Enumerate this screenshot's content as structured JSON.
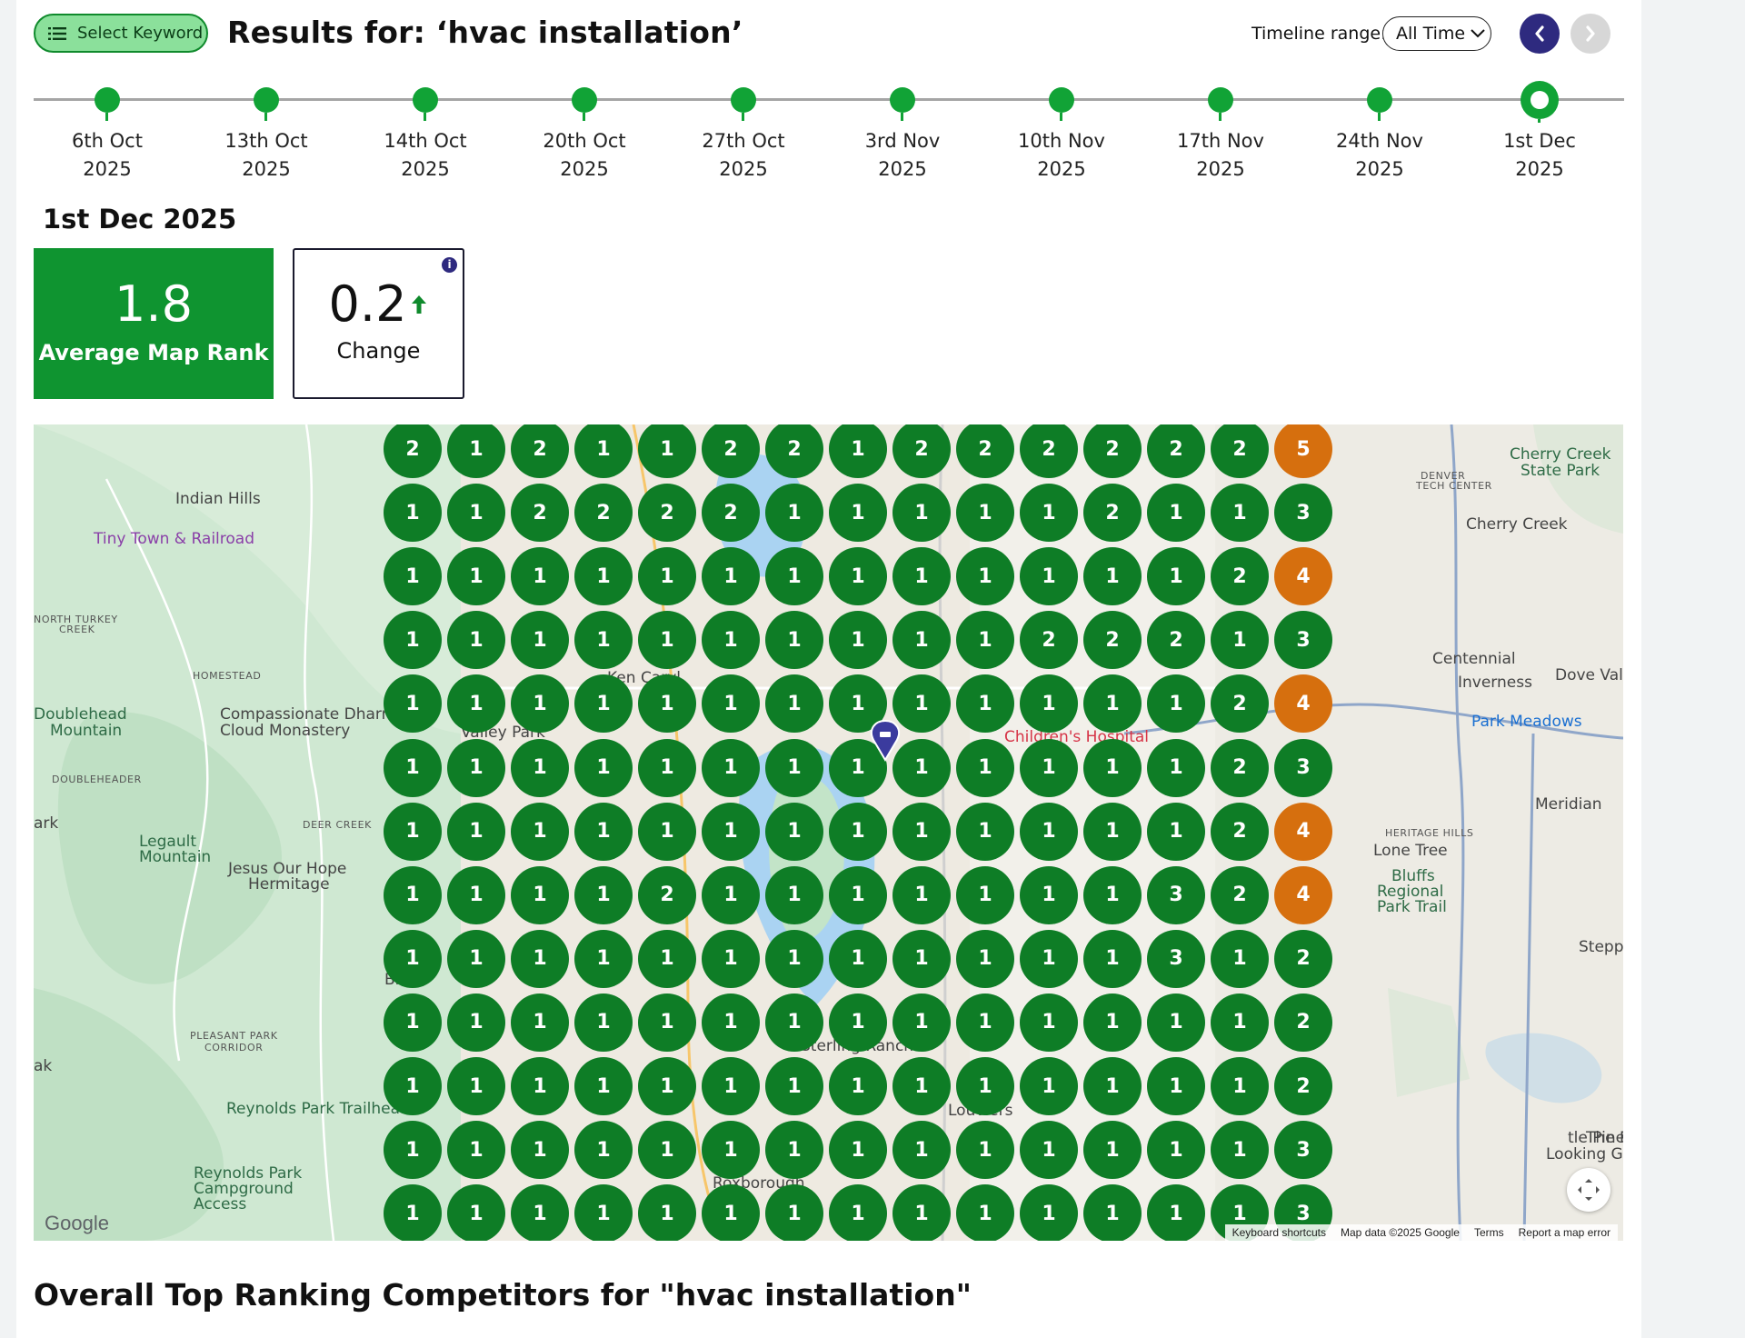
{
  "header": {
    "select_keyword_label": "Select Keyword",
    "results_title": "Results for: ‘hvac installation’",
    "timeline_range_label": "Timeline range:",
    "timeline_range_value": "All Time"
  },
  "timeline": {
    "dates": [
      {
        "line1": "6th Oct",
        "line2": "2025"
      },
      {
        "line1": "13th Oct",
        "line2": "2025"
      },
      {
        "line1": "14th Oct",
        "line2": "2025"
      },
      {
        "line1": "20th Oct",
        "line2": "2025"
      },
      {
        "line1": "27th Oct",
        "line2": "2025"
      },
      {
        "line1": "3rd Nov",
        "line2": "2025"
      },
      {
        "line1": "10th Nov",
        "line2": "2025"
      },
      {
        "line1": "17th Nov",
        "line2": "2025"
      },
      {
        "line1": "24th Nov",
        "line2": "2025"
      },
      {
        "line1": "1st Dec",
        "line2": "2025"
      }
    ],
    "selected_index": 9
  },
  "summary": {
    "date_heading": "1st Dec 2025",
    "average_rank_value": "1.8",
    "average_rank_label": "Average Map Rank",
    "change_value": "0.2",
    "change_label": "Change",
    "change_direction": "up",
    "info_icon": "i"
  },
  "map": {
    "labels": [
      {
        "text": "Indian Hills",
        "cls": ""
      },
      {
        "text": "Tiny Town & Railroad",
        "cls": "poi"
      },
      {
        "text": "NORTH TURKEY",
        "cls": "small"
      },
      {
        "text": "CREEK",
        "cls": "small"
      },
      {
        "text": "HOMESTEAD",
        "cls": "small"
      },
      {
        "text": "Doublehead",
        "cls": "green"
      },
      {
        "text": "Mountain",
        "cls": "green"
      },
      {
        "text": "Compassionate Dharma",
        "cls": ""
      },
      {
        "text": "Cloud Monastery",
        "cls": ""
      },
      {
        "text": "DOUBLEHEADER",
        "cls": "small"
      },
      {
        "text": "DEER CREEK",
        "cls": "small"
      },
      {
        "text": "Legault",
        "cls": "green"
      },
      {
        "text": "Mountain",
        "cls": "green"
      },
      {
        "text": "Jesus Our Hope",
        "cls": ""
      },
      {
        "text": "Hermitage",
        "cls": ""
      },
      {
        "text": "Brazil",
        "cls": ""
      },
      {
        "text": "PLEASANT PARK",
        "cls": "small"
      },
      {
        "text": "CORRIDOR",
        "cls": "small"
      },
      {
        "text": "Reynolds Park Trailhead",
        "cls": "green"
      },
      {
        "text": "Reynolds Park",
        "cls": "green"
      },
      {
        "text": "Campground",
        "cls": "green"
      },
      {
        "text": "Access",
        "cls": "green"
      },
      {
        "text": "Cherry Creek",
        "cls": "green"
      },
      {
        "text": "State Park",
        "cls": "green"
      },
      {
        "text": "Cherry Creek",
        "cls": ""
      },
      {
        "text": "Centennial",
        "cls": ""
      },
      {
        "text": "Inverness",
        "cls": ""
      },
      {
        "text": "Dove Vall",
        "cls": ""
      },
      {
        "text": "Park Meadows",
        "cls": "park"
      },
      {
        "text": "Meridian",
        "cls": ""
      },
      {
        "text": "HERITAGE HILLS",
        "cls": "small"
      },
      {
        "text": "Lone Tree",
        "cls": ""
      },
      {
        "text": "Bluffs",
        "cls": "green"
      },
      {
        "text": "Regional",
        "cls": "green"
      },
      {
        "text": "Park Trail",
        "cls": "green"
      },
      {
        "text": "Stepp",
        "cls": ""
      },
      {
        "text": "tle Pines",
        "cls": ""
      },
      {
        "text": "The Re",
        "cls": ""
      },
      {
        "text": "Looking Gl",
        "cls": ""
      },
      {
        "text": "Children's Hospital",
        "cls": "hosp"
      },
      {
        "text": "Valley Park",
        "cls": ""
      },
      {
        "text": "Ken Caryl",
        "cls": ""
      },
      {
        "text": "Sterling Ranch",
        "cls": ""
      },
      {
        "text": "Louviers",
        "cls": ""
      },
      {
        "text": "Roxborough",
        "cls": ""
      },
      {
        "text": "ark",
        "cls": ""
      },
      {
        "text": "ak",
        "cls": ""
      },
      {
        "text": "DENVER",
        "cls": "small"
      },
      {
        "text": "TECH CENTER",
        "cls": "small"
      }
    ],
    "grid": [
      [
        "2",
        "1",
        "2",
        "1",
        "1",
        "2",
        "2",
        "1",
        "2",
        "2",
        "2",
        "2",
        "2",
        "2",
        "5"
      ],
      [
        "1",
        "1",
        "2",
        "2",
        "2",
        "2",
        "1",
        "1",
        "1",
        "1",
        "1",
        "2",
        "1",
        "1",
        "3"
      ],
      [
        "1",
        "1",
        "1",
        "1",
        "1",
        "1",
        "1",
        "1",
        "1",
        "1",
        "1",
        "1",
        "1",
        "2",
        "4"
      ],
      [
        "1",
        "1",
        "1",
        "1",
        "1",
        "1",
        "1",
        "1",
        "1",
        "1",
        "2",
        "2",
        "2",
        "1",
        "3"
      ],
      [
        "1",
        "1",
        "1",
        "1",
        "1",
        "1",
        "1",
        "1",
        "1",
        "1",
        "1",
        "1",
        "1",
        "2",
        "4"
      ],
      [
        "1",
        "1",
        "1",
        "1",
        "1",
        "1",
        "1",
        "1",
        "1",
        "1",
        "1",
        "1",
        "1",
        "2",
        "3"
      ],
      [
        "1",
        "1",
        "1",
        "1",
        "1",
        "1",
        "1",
        "1",
        "1",
        "1",
        "1",
        "1",
        "1",
        "2",
        "4"
      ],
      [
        "1",
        "1",
        "1",
        "1",
        "2",
        "1",
        "1",
        "1",
        "1",
        "1",
        "1",
        "1",
        "3",
        "2",
        "4"
      ],
      [
        "1",
        "1",
        "1",
        "1",
        "1",
        "1",
        "1",
        "1",
        "1",
        "1",
        "1",
        "1",
        "3",
        "1",
        "2"
      ],
      [
        "1",
        "1",
        "1",
        "1",
        "1",
        "1",
        "1",
        "1",
        "1",
        "1",
        "1",
        "1",
        "1",
        "1",
        "2"
      ],
      [
        "1",
        "1",
        "1",
        "1",
        "1",
        "1",
        "1",
        "1",
        "1",
        "1",
        "1",
        "1",
        "1",
        "1",
        "2"
      ],
      [
        "1",
        "1",
        "1",
        "1",
        "1",
        "1",
        "1",
        "1",
        "1",
        "1",
        "1",
        "1",
        "1",
        "1",
        "3"
      ],
      [
        "1",
        "1",
        "1",
        "1",
        "1",
        "1",
        "1",
        "1",
        "1",
        "1",
        "1",
        "1",
        "1",
        "1",
        "3"
      ]
    ],
    "colors": {
      "top3": "#0e7d26",
      "rank4plus": "#d66f0e"
    },
    "google_logo": "Google",
    "attribution": [
      "Keyboard shortcuts",
      "Map data ©2025 Google",
      "Terms",
      "Report a map error"
    ]
  },
  "competitors": {
    "title": "Overall Top Ranking Competitors for \"hvac installation\""
  }
}
